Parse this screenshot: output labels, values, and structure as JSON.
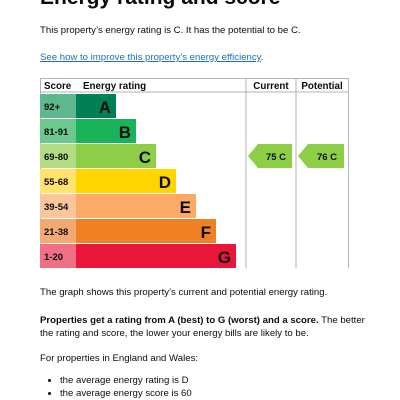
{
  "heading": "Energy rating and score",
  "intro": "This property’s energy rating is C. It has the potential to be C.",
  "improve_link": "See how to improve this property’s energy efficiency",
  "improve_link_suffix": ".",
  "chart_data": {
    "type": "table",
    "headers": {
      "score": "Score",
      "rating": "Energy rating",
      "current": "Current",
      "potential": "Potential"
    },
    "bands": [
      {
        "range": "92+",
        "letter": "A",
        "color": "#008054",
        "score_color": "#5fb78d"
      },
      {
        "range": "81-91",
        "letter": "B",
        "color": "#19b459",
        "score_color": "#6cc98d"
      },
      {
        "range": "69-80",
        "letter": "C",
        "color": "#8dce46",
        "score_color": "#b2dd82"
      },
      {
        "range": "55-68",
        "letter": "D",
        "color": "#ffd500",
        "score_color": "#ffe36b"
      },
      {
        "range": "39-54",
        "letter": "E",
        "color": "#fcaa65",
        "score_color": "#fdc59a"
      },
      {
        "range": "21-38",
        "letter": "F",
        "color": "#ef8023",
        "score_color": "#f4a972"
      },
      {
        "range": "1-20",
        "letter": "G",
        "color": "#e9153b",
        "score_color": "#ef6f84"
      }
    ],
    "current": {
      "score": 75,
      "letter": "C",
      "label": "75  C"
    },
    "potential": {
      "score": 76,
      "letter": "C",
      "label": "76  C"
    }
  },
  "graph_caption": "The graph shows this property’s current and potential energy rating.",
  "explain_bold": "Properties get a rating from A (best) to G (worst) and a score.",
  "explain_rest": " The better the rating and score, the lower your energy bills are likely to be.",
  "averages_intro": "For properties in England and Wales:",
  "averages": [
    "the average energy rating is D",
    "the average energy score is 60"
  ]
}
